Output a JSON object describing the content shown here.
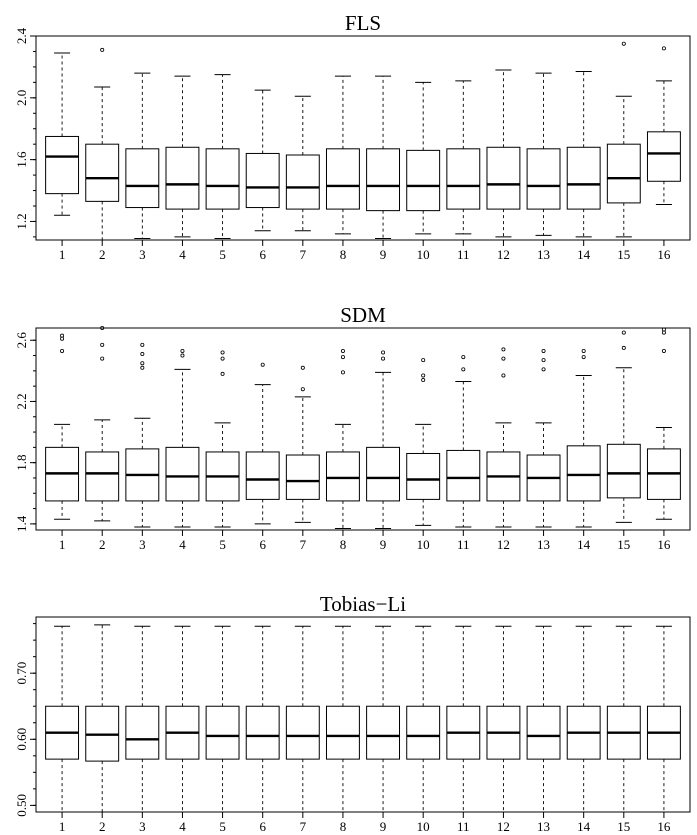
{
  "chart_data": [
    {
      "type": "boxplot",
      "title": "FLS",
      "categories": [
        "1",
        "2",
        "3",
        "4",
        "5",
        "6",
        "7",
        "8",
        "9",
        "10",
        "11",
        "12",
        "13",
        "14",
        "15",
        "16"
      ],
      "ylim": [
        1.08,
        2.4
      ],
      "yticks": [
        1.2,
        1.6,
        2.0,
        2.4
      ],
      "ytick_labels": [
        "1.2",
        "1.6",
        "2.0",
        "2.4"
      ],
      "boxes": [
        {
          "low": 1.24,
          "q1": 1.38,
          "median": 1.62,
          "q3": 1.75,
          "high": 2.29,
          "outliers": []
        },
        {
          "low": 1.08,
          "q1": 1.33,
          "median": 1.48,
          "q3": 1.7,
          "high": 2.07,
          "outliers": [
            2.31
          ]
        },
        {
          "low": 1.09,
          "q1": 1.29,
          "median": 1.43,
          "q3": 1.67,
          "high": 2.16,
          "outliers": []
        },
        {
          "low": 1.1,
          "q1": 1.28,
          "median": 1.44,
          "q3": 1.68,
          "high": 2.14,
          "outliers": []
        },
        {
          "low": 1.09,
          "q1": 1.28,
          "median": 1.43,
          "q3": 1.67,
          "high": 2.15,
          "outliers": []
        },
        {
          "low": 1.14,
          "q1": 1.29,
          "median": 1.42,
          "q3": 1.64,
          "high": 2.05,
          "outliers": []
        },
        {
          "low": 1.14,
          "q1": 1.28,
          "median": 1.42,
          "q3": 1.63,
          "high": 2.01,
          "outliers": []
        },
        {
          "low": 1.12,
          "q1": 1.28,
          "median": 1.43,
          "q3": 1.67,
          "high": 2.14,
          "outliers": []
        },
        {
          "low": 1.09,
          "q1": 1.27,
          "median": 1.43,
          "q3": 1.67,
          "high": 2.14,
          "outliers": []
        },
        {
          "low": 1.12,
          "q1": 1.27,
          "median": 1.43,
          "q3": 1.66,
          "high": 2.1,
          "outliers": []
        },
        {
          "low": 1.12,
          "q1": 1.28,
          "median": 1.43,
          "q3": 1.67,
          "high": 2.11,
          "outliers": []
        },
        {
          "low": 1.1,
          "q1": 1.28,
          "median": 1.44,
          "q3": 1.68,
          "high": 2.18,
          "outliers": []
        },
        {
          "low": 1.11,
          "q1": 1.28,
          "median": 1.43,
          "q3": 1.67,
          "high": 2.16,
          "outliers": []
        },
        {
          "low": 1.1,
          "q1": 1.28,
          "median": 1.44,
          "q3": 1.68,
          "high": 2.17,
          "outliers": []
        },
        {
          "low": 1.1,
          "q1": 1.32,
          "median": 1.48,
          "q3": 1.7,
          "high": 2.01,
          "outliers": [
            2.35
          ]
        },
        {
          "low": 1.31,
          "q1": 1.46,
          "median": 1.64,
          "q3": 1.78,
          "high": 2.11,
          "outliers": [
            2.32
          ]
        }
      ]
    },
    {
      "type": "boxplot",
      "title": "SDM",
      "categories": [
        "1",
        "2",
        "3",
        "4",
        "5",
        "6",
        "7",
        "8",
        "9",
        "10",
        "11",
        "12",
        "13",
        "14",
        "15",
        "16"
      ],
      "ylim": [
        1.36,
        2.68
      ],
      "yticks": [
        1.4,
        1.8,
        2.2,
        2.6
      ],
      "ytick_labels": [
        "1.4",
        "1.8",
        "2.2",
        "2.6"
      ],
      "boxes": [
        {
          "low": 1.43,
          "q1": 1.55,
          "median": 1.73,
          "q3": 1.9,
          "high": 2.05,
          "outliers": [
            2.53,
            2.61,
            2.63
          ]
        },
        {
          "low": 1.42,
          "q1": 1.55,
          "median": 1.73,
          "q3": 1.87,
          "high": 2.08,
          "outliers": [
            2.48,
            2.57,
            2.68
          ]
        },
        {
          "low": 1.38,
          "q1": 1.55,
          "median": 1.72,
          "q3": 1.89,
          "high": 2.09,
          "outliers": [
            2.42,
            2.45,
            2.51,
            2.57
          ]
        },
        {
          "low": 1.38,
          "q1": 1.55,
          "median": 1.71,
          "q3": 1.9,
          "high": 2.41,
          "outliers": [
            2.5,
            2.53
          ]
        },
        {
          "low": 1.38,
          "q1": 1.55,
          "median": 1.71,
          "q3": 1.87,
          "high": 2.06,
          "outliers": [
            2.38,
            2.48,
            2.52
          ]
        },
        {
          "low": 1.4,
          "q1": 1.56,
          "median": 1.69,
          "q3": 1.87,
          "high": 2.31,
          "outliers": [
            2.44
          ]
        },
        {
          "low": 1.41,
          "q1": 1.56,
          "median": 1.68,
          "q3": 1.85,
          "high": 2.23,
          "outliers": [
            2.28,
            2.42
          ]
        },
        {
          "low": 1.37,
          "q1": 1.55,
          "median": 1.7,
          "q3": 1.87,
          "high": 2.05,
          "outliers": [
            2.39,
            2.49,
            2.53
          ]
        },
        {
          "low": 1.37,
          "q1": 1.55,
          "median": 1.7,
          "q3": 1.9,
          "high": 2.39,
          "outliers": [
            2.48,
            2.52
          ]
        },
        {
          "low": 1.39,
          "q1": 1.56,
          "median": 1.69,
          "q3": 1.86,
          "high": 2.05,
          "outliers": [
            2.34,
            2.37,
            2.47
          ]
        },
        {
          "low": 1.38,
          "q1": 1.55,
          "median": 1.7,
          "q3": 1.88,
          "high": 2.33,
          "outliers": [
            2.41,
            2.49
          ]
        },
        {
          "low": 1.38,
          "q1": 1.55,
          "median": 1.71,
          "q3": 1.87,
          "high": 2.06,
          "outliers": [
            2.37,
            2.48,
            2.54
          ]
        },
        {
          "low": 1.38,
          "q1": 1.55,
          "median": 1.7,
          "q3": 1.85,
          "high": 2.06,
          "outliers": [
            2.41,
            2.47,
            2.53
          ]
        },
        {
          "low": 1.38,
          "q1": 1.55,
          "median": 1.72,
          "q3": 1.91,
          "high": 2.37,
          "outliers": [
            2.49,
            2.53
          ]
        },
        {
          "low": 1.41,
          "q1": 1.57,
          "median": 1.73,
          "q3": 1.92,
          "high": 2.42,
          "outliers": [
            2.55,
            2.65
          ]
        },
        {
          "low": 1.43,
          "q1": 1.56,
          "median": 1.73,
          "q3": 1.89,
          "high": 2.03,
          "outliers": [
            2.53,
            2.65,
            2.67
          ]
        }
      ]
    },
    {
      "type": "boxplot",
      "title": "Tobias−Li",
      "categories": [
        "1",
        "2",
        "3",
        "4",
        "5",
        "6",
        "7",
        "8",
        "9",
        "10",
        "11",
        "12",
        "13",
        "14",
        "15",
        "16"
      ],
      "ylim": [
        0.49,
        0.785
      ],
      "yticks": [
        0.5,
        0.6,
        0.7
      ],
      "ytick_labels": [
        "0.50",
        "0.60",
        "0.70"
      ],
      "boxes": [
        {
          "low": 0.49,
          "q1": 0.57,
          "median": 0.61,
          "q3": 0.65,
          "high": 0.771,
          "outliers": []
        },
        {
          "low": 0.49,
          "q1": 0.567,
          "median": 0.607,
          "q3": 0.65,
          "high": 0.773,
          "outliers": []
        },
        {
          "low": 0.49,
          "q1": 0.57,
          "median": 0.6,
          "q3": 0.65,
          "high": 0.771,
          "outliers": []
        },
        {
          "low": 0.49,
          "q1": 0.57,
          "median": 0.61,
          "q3": 0.65,
          "high": 0.771,
          "outliers": []
        },
        {
          "low": 0.49,
          "q1": 0.57,
          "median": 0.605,
          "q3": 0.65,
          "high": 0.771,
          "outliers": []
        },
        {
          "low": 0.49,
          "q1": 0.57,
          "median": 0.605,
          "q3": 0.65,
          "high": 0.771,
          "outliers": []
        },
        {
          "low": 0.49,
          "q1": 0.57,
          "median": 0.605,
          "q3": 0.65,
          "high": 0.771,
          "outliers": []
        },
        {
          "low": 0.49,
          "q1": 0.57,
          "median": 0.605,
          "q3": 0.65,
          "high": 0.771,
          "outliers": []
        },
        {
          "low": 0.49,
          "q1": 0.57,
          "median": 0.605,
          "q3": 0.65,
          "high": 0.771,
          "outliers": []
        },
        {
          "low": 0.49,
          "q1": 0.57,
          "median": 0.605,
          "q3": 0.65,
          "high": 0.771,
          "outliers": []
        },
        {
          "low": 0.49,
          "q1": 0.57,
          "median": 0.61,
          "q3": 0.65,
          "high": 0.771,
          "outliers": []
        },
        {
          "low": 0.49,
          "q1": 0.57,
          "median": 0.61,
          "q3": 0.65,
          "high": 0.771,
          "outliers": []
        },
        {
          "low": 0.49,
          "q1": 0.57,
          "median": 0.605,
          "q3": 0.65,
          "high": 0.771,
          "outliers": []
        },
        {
          "low": 0.49,
          "q1": 0.57,
          "median": 0.61,
          "q3": 0.65,
          "high": 0.771,
          "outliers": []
        },
        {
          "low": 0.49,
          "q1": 0.57,
          "median": 0.61,
          "q3": 0.65,
          "high": 0.771,
          "outliers": []
        },
        {
          "low": 0.49,
          "q1": 0.57,
          "median": 0.61,
          "q3": 0.65,
          "high": 0.771,
          "outliers": []
        }
      ]
    }
  ]
}
